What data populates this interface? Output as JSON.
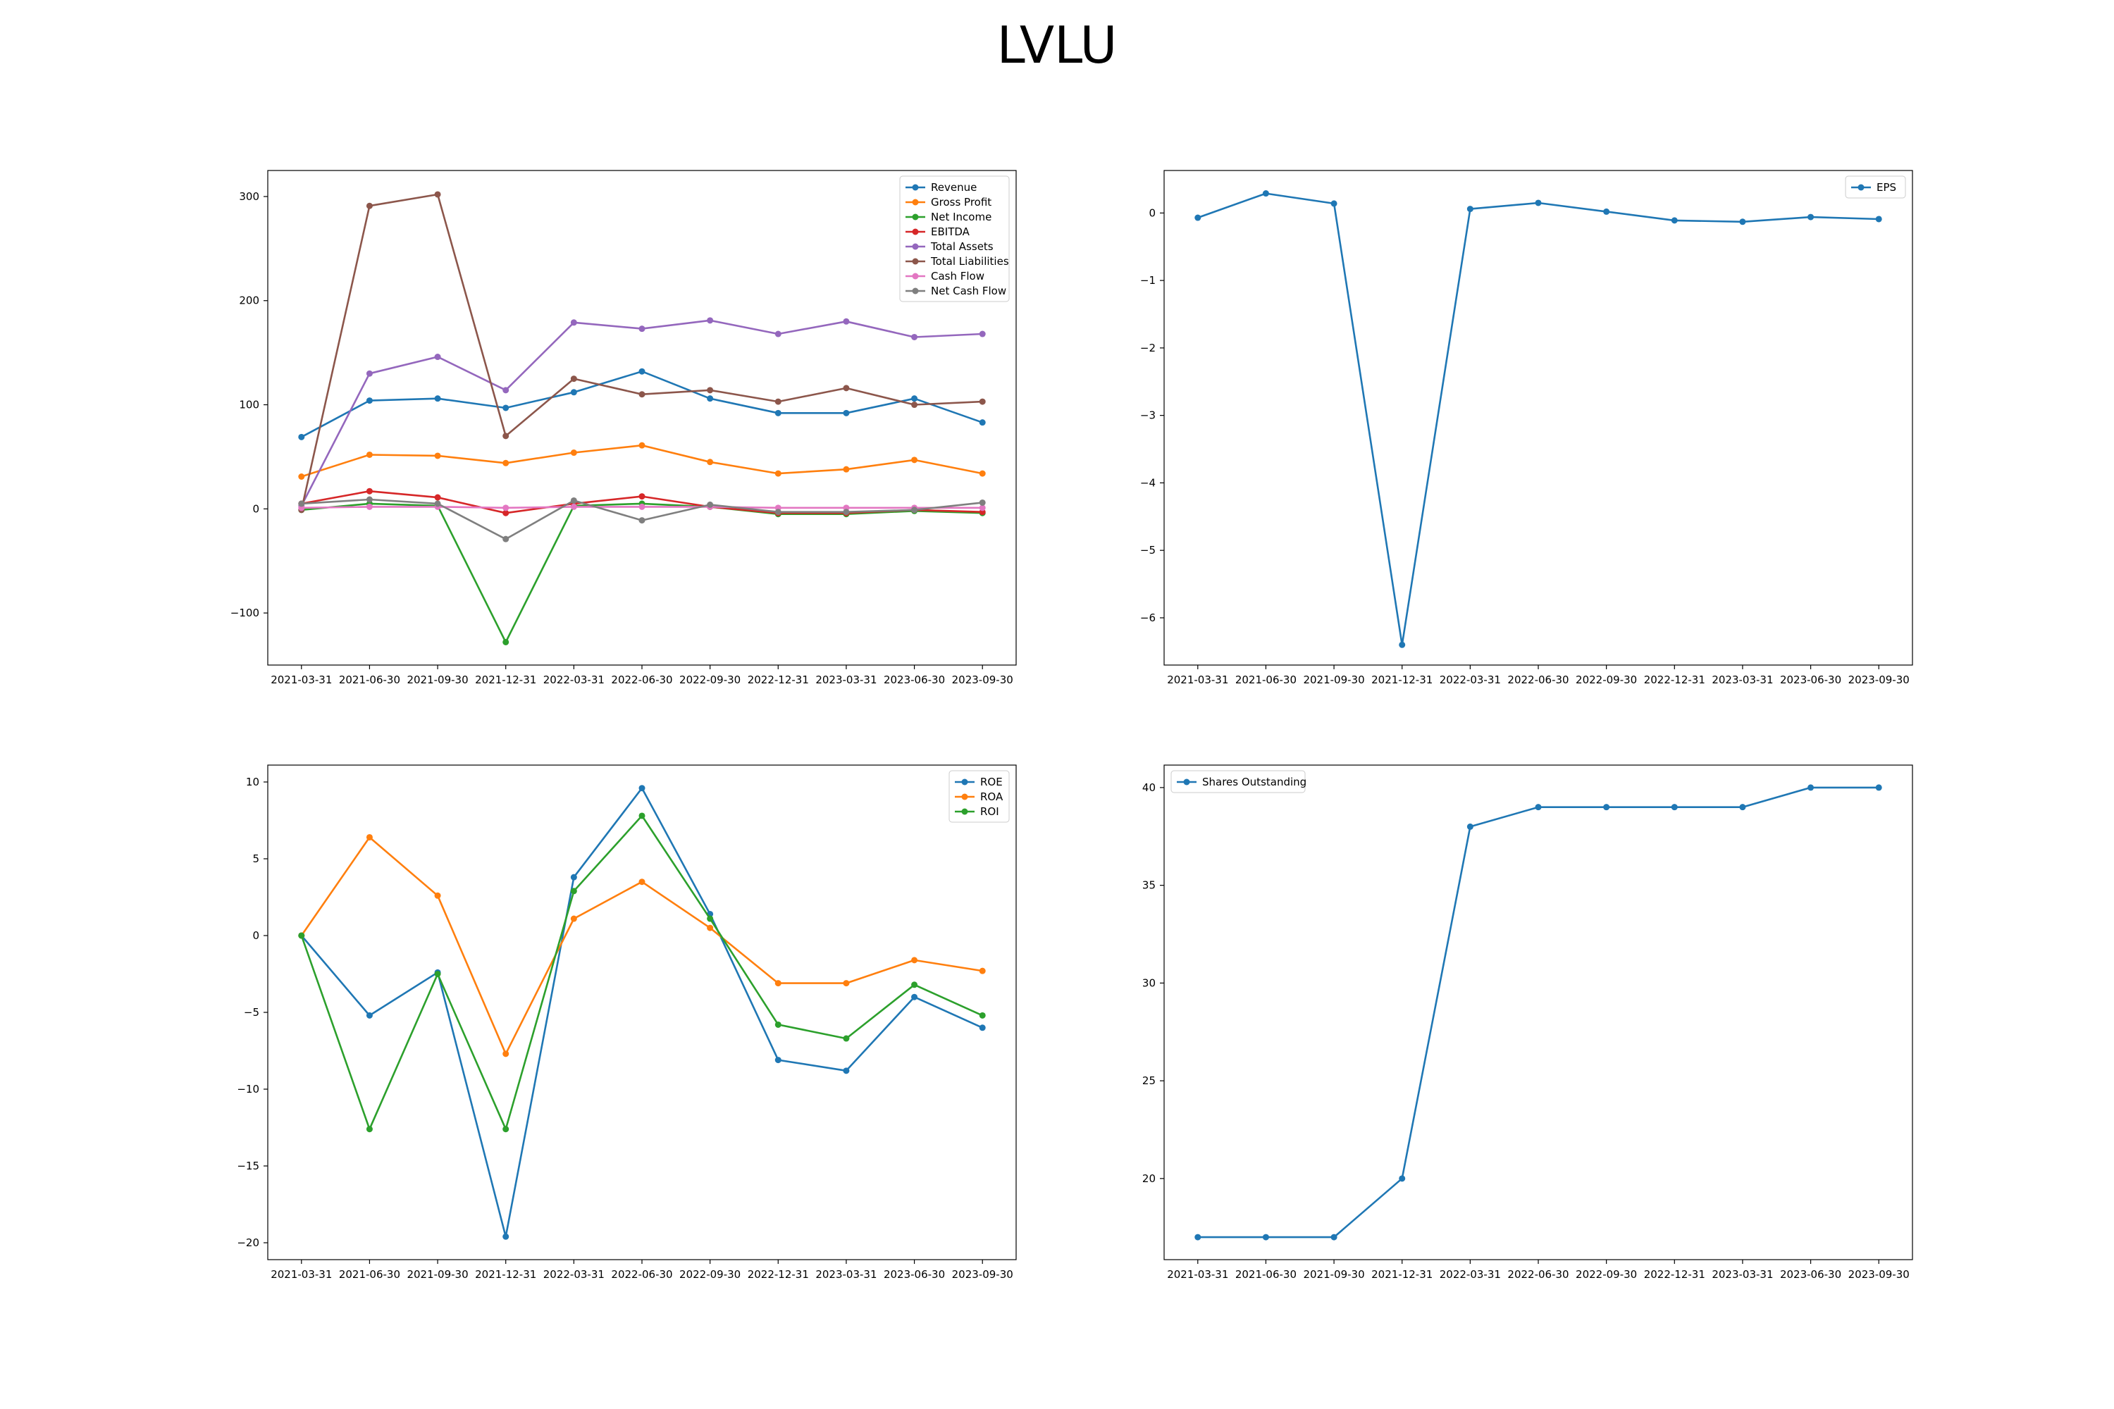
{
  "figure": {
    "title": "LVLU"
  },
  "chart_data": [
    {
      "type": "line",
      "x": [
        "2021-03-31",
        "2021-06-30",
        "2021-09-30",
        "2021-12-31",
        "2022-03-31",
        "2022-06-30",
        "2022-09-30",
        "2022-12-31",
        "2023-03-31",
        "2023-06-30",
        "2023-09-30"
      ],
      "ylim": [
        -150,
        325
      ],
      "yticks": [
        -100,
        0,
        100,
        200,
        300
      ],
      "legend": "top-right",
      "grid": false,
      "series": [
        {
          "name": "Revenue",
          "color": "#1f77b4",
          "values": [
            69,
            104,
            106,
            97,
            112,
            132,
            106,
            92,
            92,
            106,
            83
          ]
        },
        {
          "name": "Gross Profit",
          "color": "#ff7f0e",
          "values": [
            31,
            52,
            51,
            44,
            54,
            61,
            45,
            34,
            38,
            47,
            34
          ]
        },
        {
          "name": "Net Income",
          "color": "#2ca02c",
          "values": [
            -1,
            5,
            3,
            -128,
            3,
            5,
            2,
            -5,
            -5,
            -2,
            -4
          ]
        },
        {
          "name": "EBITDA",
          "color": "#d62728",
          "values": [
            5,
            17,
            11,
            -4,
            5,
            12,
            2,
            -4,
            -4,
            -1,
            -3
          ]
        },
        {
          "name": "Total Assets",
          "color": "#9467bd",
          "values": [
            3,
            130,
            146,
            114,
            179,
            173,
            181,
            168,
            180,
            165,
            168
          ]
        },
        {
          "name": "Total Liabilities",
          "color": "#8c564b",
          "values": [
            -1,
            291,
            302,
            70,
            125,
            110,
            114,
            103,
            116,
            100,
            103
          ]
        },
        {
          "name": "Cash Flow",
          "color": "#e377c2",
          "values": [
            1,
            2,
            2,
            1,
            2,
            2,
            2,
            1,
            1,
            1,
            1
          ]
        },
        {
          "name": "Net Cash Flow",
          "color": "#7f7f7f",
          "values": [
            5,
            9,
            5,
            -29,
            8,
            -11,
            4,
            -3,
            -3,
            -1,
            6
          ]
        }
      ]
    },
    {
      "type": "line",
      "x": [
        "2021-03-31",
        "2021-06-30",
        "2021-09-30",
        "2021-12-31",
        "2022-03-31",
        "2022-06-30",
        "2022-09-30",
        "2022-12-31",
        "2023-03-31",
        "2023-06-30",
        "2023-09-30"
      ],
      "ylim": [
        -6.7,
        0.63
      ],
      "yticks": [
        -6,
        -5,
        -4,
        -3,
        -2,
        -1,
        0
      ],
      "legend": "top-right",
      "grid": false,
      "series": [
        {
          "name": "EPS",
          "color": "#1f77b4",
          "values": [
            -0.07,
            0.29,
            0.14,
            -6.4,
            0.06,
            0.15,
            0.02,
            -0.11,
            -0.13,
            -0.06,
            -0.09
          ]
        }
      ]
    },
    {
      "type": "line",
      "x": [
        "2021-03-31",
        "2021-06-30",
        "2021-09-30",
        "2021-12-31",
        "2022-03-31",
        "2022-06-30",
        "2022-09-30",
        "2022-12-31",
        "2023-03-31",
        "2023-06-30",
        "2023-09-30"
      ],
      "ylim": [
        -21.1,
        11.1
      ],
      "yticks": [
        -20,
        -15,
        -10,
        -5,
        0,
        5,
        10
      ],
      "legend": "top-right",
      "grid": false,
      "series": [
        {
          "name": "ROE",
          "color": "#1f77b4",
          "values": [
            0,
            -5.2,
            -2.4,
            -19.6,
            3.8,
            9.6,
            1.4,
            -8.1,
            -8.8,
            -4.0,
            -6.0
          ]
        },
        {
          "name": "ROA",
          "color": "#ff7f0e",
          "values": [
            0,
            6.4,
            2.6,
            -7.7,
            1.1,
            3.5,
            0.5,
            -3.1,
            -3.1,
            -1.6,
            -2.3
          ]
        },
        {
          "name": "ROI",
          "color": "#2ca02c",
          "values": [
            0,
            -12.6,
            -2.5,
            -12.6,
            2.9,
            7.8,
            1.1,
            -5.8,
            -6.7,
            -3.2,
            -5.2
          ]
        }
      ]
    },
    {
      "type": "line",
      "x": [
        "2021-03-31",
        "2021-06-30",
        "2021-09-30",
        "2021-12-31",
        "2022-03-31",
        "2022-06-30",
        "2022-09-30",
        "2022-12-31",
        "2023-03-31",
        "2023-06-30",
        "2023-09-30"
      ],
      "ylim": [
        15.85,
        41.15
      ],
      "yticks": [
        20,
        25,
        30,
        35,
        40
      ],
      "legend": "top-left",
      "grid": false,
      "series": [
        {
          "name": "Shares Outstanding",
          "color": "#1f77b4",
          "values": [
            17,
            17,
            17,
            20,
            38,
            39,
            39,
            39,
            39,
            40,
            40
          ]
        }
      ]
    }
  ]
}
